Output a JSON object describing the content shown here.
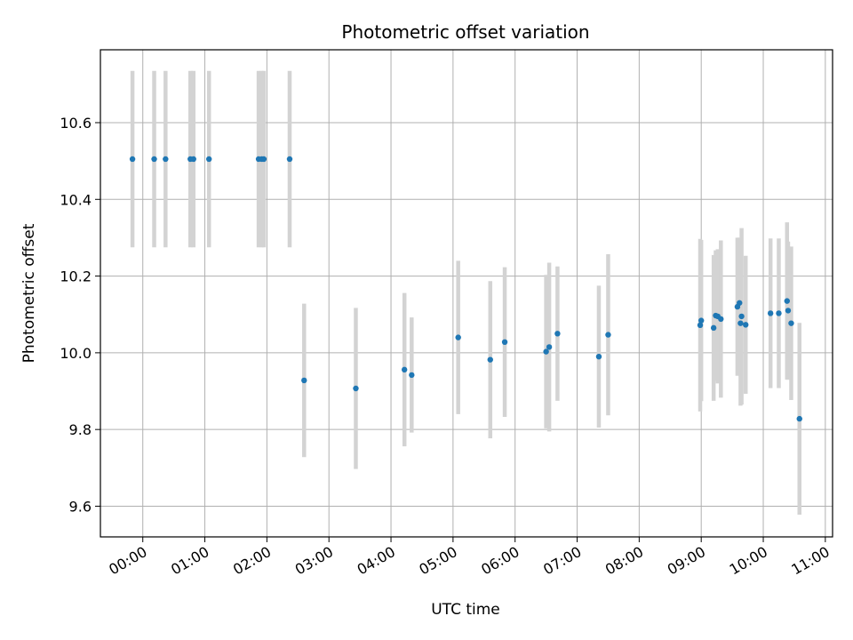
{
  "chart_data": {
    "type": "scatter",
    "title": "Photometric offset variation",
    "xlabel": "UTC time",
    "ylabel": "Photometric offset",
    "grid": true,
    "x_ticks": [
      "00:00",
      "01:00",
      "02:00",
      "03:00",
      "04:00",
      "05:00",
      "06:00",
      "07:00",
      "08:00",
      "09:00",
      "10:00",
      "11:00"
    ],
    "x_range": [
      "-00:41",
      "11:07"
    ],
    "y_ticks": [
      "9.6",
      "9.8",
      "10.0",
      "10.2",
      "10.4",
      "10.6"
    ],
    "ylim": [
      9.52,
      10.79
    ],
    "colors": {
      "point": "#1f77b4",
      "errorbar": "#d3d3d3",
      "grid": "#b0b0b0"
    },
    "points": [
      {
        "x": "23:50",
        "y": 10.505,
        "err": 0.23
      },
      {
        "x": "00:11",
        "y": 10.505,
        "err": 0.23
      },
      {
        "x": "00:22",
        "y": 10.505,
        "err": 0.23
      },
      {
        "x": "00:46",
        "y": 10.505,
        "err": 0.23
      },
      {
        "x": "00:49",
        "y": 10.505,
        "err": 0.23
      },
      {
        "x": "01:04",
        "y": 10.505,
        "err": 0.23
      },
      {
        "x": "01:52",
        "y": 10.505,
        "err": 0.23
      },
      {
        "x": "01:55",
        "y": 10.505,
        "err": 0.23
      },
      {
        "x": "01:57",
        "y": 10.505,
        "err": 0.23
      },
      {
        "x": "02:22",
        "y": 10.505,
        "err": 0.23
      },
      {
        "x": "02:36",
        "y": 9.928,
        "err": 0.2
      },
      {
        "x": "03:26",
        "y": 9.907,
        "err": 0.21
      },
      {
        "x": "04:13",
        "y": 9.956,
        "err": 0.2
      },
      {
        "x": "04:20",
        "y": 9.942,
        "err": 0.15
      },
      {
        "x": "05:05",
        "y": 10.04,
        "err": 0.2
      },
      {
        "x": "05:36",
        "y": 9.982,
        "err": 0.205
      },
      {
        "x": "05:50",
        "y": 10.028,
        "err": 0.195
      },
      {
        "x": "06:30",
        "y": 10.003,
        "err": 0.2
      },
      {
        "x": "06:33",
        "y": 10.015,
        "err": 0.22
      },
      {
        "x": "06:41",
        "y": 10.05,
        "err": 0.175
      },
      {
        "x": "07:21",
        "y": 9.99,
        "err": 0.185
      },
      {
        "x": "07:30",
        "y": 10.047,
        "err": 0.21
      },
      {
        "x": "08:59",
        "y": 10.072,
        "err": 0.225
      },
      {
        "x": "09:00",
        "y": 10.084,
        "err": 0.21
      },
      {
        "x": "09:12",
        "y": 10.065,
        "err": 0.19
      },
      {
        "x": "09:14",
        "y": 10.097,
        "err": 0.17
      },
      {
        "x": "09:16",
        "y": 10.095,
        "err": 0.175
      },
      {
        "x": "09:19",
        "y": 10.088,
        "err": 0.205
      },
      {
        "x": "09:35",
        "y": 10.12,
        "err": 0.18
      },
      {
        "x": "09:37",
        "y": 10.13,
        "err": 0.17
      },
      {
        "x": "09:38",
        "y": 10.077,
        "err": 0.215
      },
      {
        "x": "09:39",
        "y": 10.095,
        "err": 0.23
      },
      {
        "x": "09:43",
        "y": 10.073,
        "err": 0.18
      },
      {
        "x": "10:07",
        "y": 10.103,
        "err": 0.195
      },
      {
        "x": "10:15",
        "y": 10.103,
        "err": 0.195
      },
      {
        "x": "10:23",
        "y": 10.135,
        "err": 0.205
      },
      {
        "x": "10:24",
        "y": 10.11,
        "err": 0.18
      },
      {
        "x": "10:27",
        "y": 10.077,
        "err": 0.2
      },
      {
        "x": "10:35",
        "y": 9.828,
        "err": 0.25
      }
    ]
  }
}
